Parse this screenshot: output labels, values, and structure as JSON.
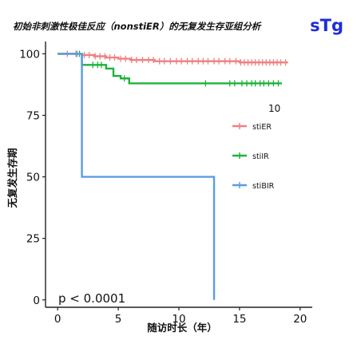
{
  "corner_tag": "sTg",
  "chart_data": {
    "type": "line",
    "subtype": "kaplan-meier",
    "title": "初始非刺激性极佳反应（nonstiER）的无复发生存亚组分析",
    "xlabel": "随访时长（年）",
    "ylabel": "无复发生存期",
    "xlim": [
      -1,
      21
    ],
    "ylim": [
      -3,
      105
    ],
    "xticks": [
      0,
      5,
      10,
      15,
      20
    ],
    "yticks": [
      0,
      25,
      50,
      75,
      100
    ],
    "grid": false,
    "legend_title": "10",
    "legend_position": "right",
    "annotation": "p < 0.0001",
    "series": [
      {
        "name": "stiER",
        "color": "#F08080",
        "steps": [
          [
            0,
            100
          ],
          [
            2,
            99.5
          ],
          [
            3,
            99
          ],
          [
            4,
            98.5
          ],
          [
            5,
            98
          ],
          [
            6,
            97.5
          ],
          [
            8,
            97
          ],
          [
            12,
            97
          ],
          [
            15,
            96.5
          ],
          [
            19,
            96.5
          ]
        ],
        "censor": [
          0.8,
          1.5,
          2.2,
          2.6,
          3.1,
          3.5,
          3.9,
          4.3,
          4.7,
          5.2,
          5.6,
          6.1,
          6.5,
          7,
          7.5,
          7.9,
          8.4,
          8.8,
          9.3,
          9.8,
          10.2,
          10.7,
          11.1,
          11.6,
          12,
          12.4,
          12.9,
          13.3,
          13.8,
          14.2,
          14.7,
          15.1,
          15.4,
          15.7,
          16,
          16.3,
          16.6,
          16.9,
          17.2,
          17.5,
          17.8,
          18.1,
          18.4,
          18.8
        ]
      },
      {
        "name": "stiIR",
        "color": "#1DB33B",
        "steps": [
          [
            0,
            100
          ],
          [
            2,
            95.5
          ],
          [
            4,
            94
          ],
          [
            4.6,
            91
          ],
          [
            5.2,
            90
          ],
          [
            5.9,
            88
          ],
          [
            18.5,
            88
          ]
        ],
        "censor": [
          1.8,
          2.9,
          3.3,
          3.6,
          5.5,
          12.2,
          14.2,
          14.6,
          15.2,
          15.6,
          16,
          16.3,
          16.7,
          17,
          17.4,
          17.8,
          18.2
        ]
      },
      {
        "name": "stiBIR",
        "color": "#5B9BE6",
        "steps": [
          [
            0,
            100
          ],
          [
            2,
            50
          ],
          [
            12.9,
            0
          ]
        ],
        "censor": [
          1.6
        ]
      }
    ]
  }
}
